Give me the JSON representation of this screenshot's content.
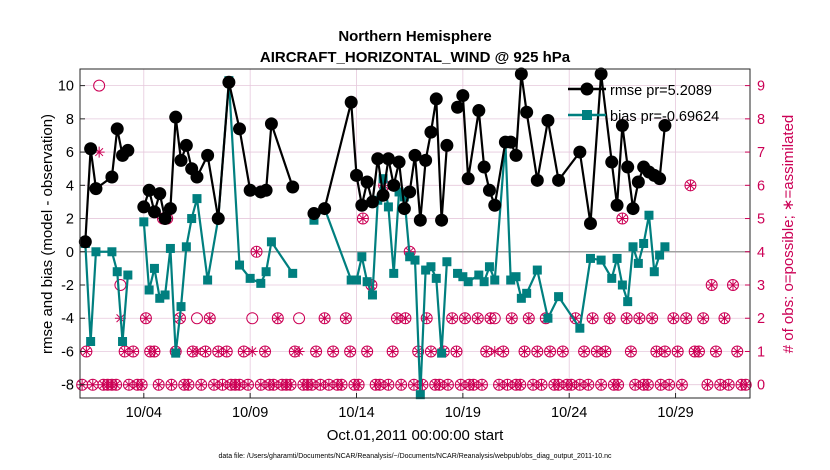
{
  "chart_data": {
    "type": "line",
    "title": "Northern Hemisphere",
    "subtitle": "AIRCRAFT_HORIZONTAL_WIND @ 925 hPa",
    "xlabel": "Oct.01,2011 00:00:00 start",
    "ylabel_left": "rmse and bias (model - observation)",
    "ylabel_right": "# of obs: o=possible; ∗=assimilated",
    "footnote": "data file: /Users/gharamti/Documents/NCAR/Reanalysis/~/Documents/NCAR/Reanalysis/webpub/obs_diag_output_2011-10.nc",
    "xlim": [
      0,
      31.5
    ],
    "ylim_left": [
      -8.8,
      11
    ],
    "ylim_right": [
      -0.4,
      9.5
    ],
    "x_ticks": [
      3,
      8,
      13,
      18,
      23,
      28
    ],
    "x_tick_labels": [
      "10/04",
      "10/09",
      "10/14",
      "10/19",
      "10/24",
      "10/29"
    ],
    "y_ticks_left": [
      -8,
      -6,
      -4,
      -2,
      0,
      2,
      4,
      6,
      8,
      10
    ],
    "y_ticks_right": [
      0,
      1,
      2,
      3,
      4,
      5,
      6,
      7,
      8,
      9
    ],
    "grid": true,
    "legend_position": "top-right",
    "colors": {
      "rmse": "#000000",
      "bias": "#007f7f",
      "obs": "#cc0055",
      "zero_line": "#a0a0a0",
      "grid": "#e6c8dc"
    },
    "series": [
      {
        "name": "rmse",
        "legend": "rmse pr=5.2089",
        "x": [
          0.25,
          0.5,
          0.75,
          1.5,
          1.75,
          2.0,
          2.25,
          2.5,
          3.0,
          3.25,
          3.5,
          3.75,
          4.0,
          4.25,
          4.5,
          4.75,
          5.0,
          5.25,
          5.5,
          6.0,
          6.5,
          7.0,
          7.5,
          8.0,
          8.5,
          8.75,
          9.0,
          10.0,
          10.5,
          11.0,
          11.5,
          12.75,
          13.0,
          13.25,
          13.5,
          13.75,
          14.0,
          14.25,
          14.5,
          14.75,
          15.0,
          15.25,
          15.5,
          15.75,
          16.0,
          16.25,
          16.5,
          16.75,
          17.0,
          17.25,
          17.5,
          17.75,
          18.0,
          18.25,
          18.75,
          19.0,
          19.25,
          19.5,
          20.0,
          20.25,
          20.5,
          20.75,
          21.0,
          21.5,
          22.0,
          22.5,
          23.5,
          24.0,
          24.5,
          25.0,
          25.25,
          25.5,
          25.75,
          26.0,
          26.25,
          26.5,
          26.75,
          27.0,
          27.25,
          27.5,
          27.75,
          28.0,
          28.25,
          28.5,
          28.75,
          29.0,
          29.25,
          29.5,
          29.75,
          30.0,
          30.5,
          31.0,
          31.25
        ],
        "values": [
          0.6,
          6.2,
          3.8,
          4.5,
          7.4,
          5.8,
          6.1,
          null,
          2.7,
          3.7,
          2.4,
          3.5,
          2.0,
          2.6,
          8.1,
          5.5,
          6.4,
          5.0,
          4.5,
          5.8,
          2.0,
          10.2,
          7.4,
          3.7,
          3.6,
          3.7,
          7.7,
          3.9,
          null,
          2.3,
          2.6,
          9.0,
          4.6,
          2.8,
          4.2,
          3.0,
          5.6,
          3.4,
          5.6,
          4.0,
          5.4,
          2.6,
          3.6,
          5.8,
          1.9,
          5.5,
          7.2,
          9.2,
          1.9,
          6.4,
          null,
          8.7,
          9.4,
          4.4,
          8.5,
          5.1,
          3.7,
          2.8,
          6.6,
          6.6,
          5.8,
          10.7,
          8.4,
          4.3,
          7.9,
          4.3,
          6.0,
          1.7,
          10.7,
          5.4,
          2.8,
          7.6,
          5.1,
          2.6,
          4.2,
          5.1,
          4.8,
          4.6,
          4.4,
          7.6,
          null,
          null,
          null,
          null,
          null,
          null,
          null,
          null,
          null,
          null,
          null,
          null,
          null
        ]
      },
      {
        "name": "bias",
        "legend": "bias pr=-0.69624",
        "x": [
          0.25,
          0.5,
          0.75,
          1.5,
          1.75,
          2.0,
          2.25,
          2.5,
          3.0,
          3.25,
          3.5,
          3.75,
          4.0,
          4.25,
          4.5,
          4.75,
          5.0,
          5.25,
          5.5,
          6.0,
          6.5,
          7.0,
          7.5,
          8.0,
          8.5,
          8.75,
          9.0,
          10.0,
          10.5,
          11.0,
          11.5,
          12.75,
          13.0,
          13.25,
          13.5,
          13.75,
          14.0,
          14.25,
          14.5,
          14.75,
          15.0,
          15.25,
          15.5,
          15.75,
          16.0,
          16.25,
          16.5,
          16.75,
          17.0,
          17.25,
          17.5,
          17.75,
          18.0,
          18.25,
          18.75,
          19.0,
          19.25,
          19.5,
          20.0,
          20.25,
          20.5,
          20.75,
          21.0,
          21.5,
          22.0,
          22.5,
          23.5,
          24.0,
          24.5,
          25.0,
          25.25,
          25.5,
          25.75,
          26.0,
          26.25,
          26.5,
          26.75,
          27.0,
          27.25,
          27.5,
          27.75,
          28.0,
          28.25,
          28.5,
          28.75,
          29.0,
          29.25,
          29.5,
          29.75,
          30.0,
          30.5,
          31.0,
          31.25
        ],
        "values": [
          0.5,
          -5.4,
          0.0,
          0.0,
          -1.2,
          -5.4,
          -1.4,
          null,
          1.8,
          -2.3,
          -1.0,
          -2.8,
          -2.6,
          0.2,
          -6.1,
          -3.3,
          0.3,
          2.0,
          3.2,
          -1.7,
          2.0,
          10.3,
          -0.8,
          -1.6,
          -1.9,
          -1.2,
          0.6,
          -1.3,
          null,
          1.9,
          2.6,
          -1.7,
          -1.7,
          -0.3,
          -1.8,
          -2.6,
          3.1,
          4.4,
          2.7,
          -1.3,
          3.6,
          3.3,
          -0.3,
          -0.5,
          -8.6,
          -1.1,
          -0.9,
          -1.6,
          -6.1,
          -0.6,
          null,
          -1.3,
          -1.5,
          -1.8,
          -1.4,
          -1.8,
          -0.9,
          -1.7,
          6.6,
          -1.7,
          -1.5,
          -2.8,
          -2.5,
          -1.1,
          -4.0,
          -2.7,
          -4.6,
          -0.4,
          -0.5,
          -1.6,
          -0.4,
          -2.0,
          -3.0,
          0.3,
          -0.7,
          0.5,
          2.2,
          -1.2,
          -0.2,
          0.3,
          null,
          null,
          null,
          null,
          null,
          null,
          null,
          null,
          null,
          null,
          null,
          null,
          null
        ]
      },
      {
        "name": "obs_possible",
        "marker": "o",
        "x": [
          0.1,
          0.3,
          0.6,
          0.9,
          1.1,
          1.3,
          1.5,
          1.7,
          1.9,
          2.1,
          2.3,
          2.5,
          2.7,
          2.9,
          3.1,
          3.3,
          3.5,
          3.7,
          3.9,
          4.1,
          4.3,
          4.5,
          4.7,
          4.9,
          5.1,
          5.3,
          5.5,
          5.7,
          5.9,
          6.1,
          6.3,
          6.5,
          6.7,
          6.9,
          7.1,
          7.3,
          7.5,
          7.7,
          7.9,
          8.1,
          8.3,
          8.5,
          8.7,
          8.9,
          9.1,
          9.3,
          9.5,
          9.7,
          9.9,
          10.1,
          10.3,
          10.5,
          10.7,
          10.9,
          11.1,
          11.3,
          11.5,
          11.7,
          11.9,
          12.1,
          12.3,
          12.5,
          12.7,
          12.9,
          13.1,
          13.3,
          13.5,
          13.7,
          13.9,
          14.1,
          14.3,
          14.5,
          14.7,
          14.9,
          15.1,
          15.3,
          15.5,
          15.7,
          15.9,
          16.1,
          16.3,
          16.5,
          16.7,
          16.9,
          17.1,
          17.3,
          17.5,
          17.7,
          17.9,
          18.1,
          18.3,
          18.5,
          18.7,
          18.9,
          19.1,
          19.3,
          19.5,
          19.7,
          19.9,
          20.1,
          20.3,
          20.5,
          20.7,
          20.9,
          21.1,
          21.3,
          21.5,
          21.7,
          21.9,
          22.1,
          22.3,
          22.5,
          22.7,
          22.9,
          23.1,
          23.3,
          23.5,
          23.7,
          23.9,
          24.1,
          24.3,
          24.5,
          24.7,
          24.9,
          25.1,
          25.3,
          25.5,
          25.7,
          25.9,
          26.1,
          26.3,
          26.5,
          26.7,
          26.9,
          27.1,
          27.3,
          27.5,
          27.7,
          27.9,
          28.1,
          28.3,
          28.5,
          28.7,
          28.9,
          29.1,
          29.3,
          29.5,
          29.7,
          29.9,
          30.1,
          30.3,
          30.5,
          30.7,
          30.9,
          31.1,
          31.3
        ],
        "values": [
          0,
          1,
          0,
          9,
          0,
          0,
          0,
          0,
          3,
          1,
          0,
          1,
          0,
          0,
          2,
          1,
          1,
          0,
          5,
          5,
          0,
          1,
          2,
          0,
          0,
          1,
          2,
          0,
          1,
          2,
          0,
          1,
          0,
          1,
          0,
          0,
          0,
          1,
          0,
          2,
          4,
          0,
          1,
          0,
          0,
          2,
          0,
          0,
          0,
          1,
          2,
          0,
          0,
          0,
          1,
          0,
          2,
          0,
          1,
          0,
          0,
          2,
          1,
          0,
          0,
          5,
          1,
          3,
          0,
          0,
          6,
          0,
          1,
          2,
          0,
          2,
          4,
          0,
          1,
          0,
          2,
          1,
          0,
          0,
          1,
          0,
          2,
          1,
          0,
          2,
          0,
          0,
          2,
          0,
          1,
          2,
          2,
          0,
          1,
          0,
          2,
          0,
          0,
          1,
          2,
          0,
          1,
          0,
          2,
          1,
          0,
          0,
          1,
          0,
          0,
          2,
          0,
          1,
          0,
          2,
          1,
          0,
          1,
          2,
          0,
          0,
          5,
          2,
          1,
          0,
          2,
          0,
          0,
          2,
          1,
          0,
          1,
          0,
          2,
          1,
          0,
          2,
          6,
          1,
          1,
          2,
          0,
          3,
          1,
          0,
          2,
          0,
          3,
          1,
          0,
          0
        ]
      },
      {
        "name": "obs_assimilated",
        "marker": "*",
        "x": [
          0.1,
          0.3,
          0.6,
          0.9,
          1.1,
          1.3,
          1.5,
          1.7,
          1.9,
          2.1,
          2.3,
          2.5,
          2.7,
          2.9,
          3.1,
          3.3,
          3.5,
          3.7,
          3.9,
          4.1,
          4.3,
          4.5,
          4.7,
          4.9,
          5.1,
          5.3,
          5.5,
          5.7,
          5.9,
          6.1,
          6.3,
          6.5,
          6.7,
          6.9,
          7.1,
          7.3,
          7.5,
          7.7,
          7.9,
          8.1,
          8.3,
          8.5,
          8.7,
          8.9,
          9.1,
          9.3,
          9.5,
          9.7,
          9.9,
          10.1,
          10.3,
          10.5,
          10.7,
          10.9,
          11.1,
          11.3,
          11.5,
          11.7,
          11.9,
          12.1,
          12.3,
          12.5,
          12.7,
          12.9,
          13.1,
          13.3,
          13.5,
          13.7,
          13.9,
          14.1,
          14.3,
          14.5,
          14.7,
          14.9,
          15.1,
          15.3,
          15.5,
          15.7,
          15.9,
          16.1,
          16.3,
          16.5,
          16.7,
          16.9,
          17.1,
          17.3,
          17.5,
          17.7,
          17.9,
          18.1,
          18.3,
          18.5,
          18.7,
          18.9,
          19.1,
          19.3,
          19.5,
          19.7,
          19.9,
          20.1,
          20.3,
          20.5,
          20.7,
          20.9,
          21.1,
          21.3,
          21.5,
          21.7,
          21.9,
          22.1,
          22.3,
          22.5,
          22.7,
          22.9,
          23.1,
          23.3,
          23.5,
          23.7,
          23.9,
          24.1,
          24.3,
          24.5,
          24.7,
          24.9,
          25.1,
          25.3,
          25.5,
          25.7,
          25.9,
          26.1,
          26.3,
          26.5,
          26.7,
          26.9,
          27.1,
          27.3,
          27.5,
          27.7,
          27.9,
          28.1,
          28.3,
          28.5,
          28.7,
          28.9,
          29.1,
          29.3,
          29.5,
          29.7,
          29.9,
          30.1,
          30.3,
          30.5,
          30.7,
          30.9,
          31.1,
          31.3
        ],
        "values": [
          0,
          1,
          0,
          7,
          0,
          0,
          0,
          0,
          2,
          1,
          0,
          1,
          0,
          0,
          2,
          1,
          1,
          0,
          5,
          5,
          0,
          1,
          2,
          0,
          0,
          1,
          1,
          0,
          1,
          2,
          0,
          1,
          0,
          1,
          0,
          0,
          0,
          1,
          0,
          1,
          4,
          0,
          1,
          0,
          0,
          2,
          0,
          0,
          0,
          1,
          1,
          0,
          0,
          0,
          1,
          0,
          2,
          0,
          1,
          0,
          0,
          2,
          1,
          0,
          0,
          5,
          1,
          3,
          0,
          0,
          6,
          0,
          1,
          2,
          0,
          2,
          4,
          0,
          1,
          0,
          2,
          1,
          0,
          0,
          1,
          0,
          2,
          1,
          0,
          2,
          0,
          0,
          2,
          0,
          1,
          2,
          1,
          0,
          1,
          0,
          2,
          0,
          0,
          1,
          2,
          0,
          1,
          0,
          2,
          1,
          0,
          0,
          1,
          0,
          0,
          2,
          0,
          1,
          0,
          2,
          1,
          0,
          1,
          2,
          0,
          0,
          5,
          2,
          1,
          0,
          2,
          0,
          0,
          2,
          1,
          0,
          1,
          0,
          2,
          1,
          0,
          2,
          6,
          1,
          1,
          2,
          0,
          3,
          1,
          0,
          2,
          0,
          3,
          1,
          0,
          0
        ]
      }
    ]
  }
}
